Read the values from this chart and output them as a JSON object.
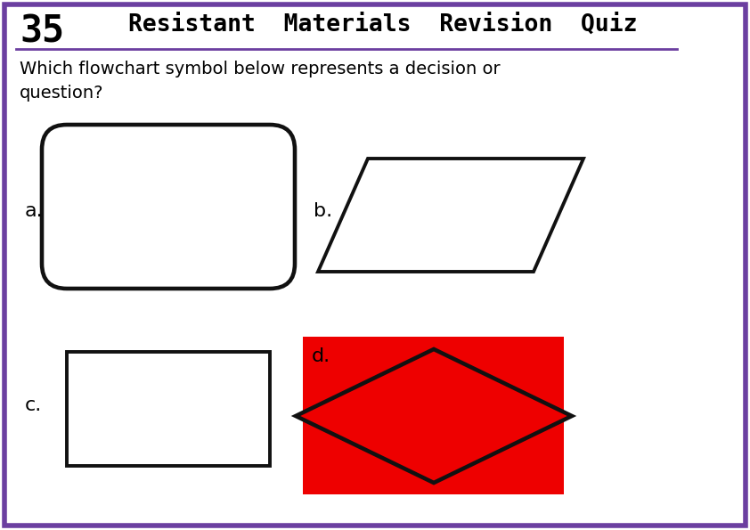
{
  "title": "Resistant  Materials  Revision  Quiz",
  "question_number": "35",
  "question_text": "Which flowchart symbol below represents a decision or\nquestion?",
  "bg_color": "#ffffff",
  "border_color": "#6B3FA0",
  "title_color": "#000000",
  "number_color": "#000000",
  "label_a": "a.",
  "label_b": "b.",
  "label_c": "c.",
  "label_d": "d.",
  "red_bg": "#ee0000",
  "shape_stroke": "#111111",
  "shape_linewidth": 2.8,
  "fig_width": 8.42,
  "fig_height": 5.95,
  "dpi": 100
}
